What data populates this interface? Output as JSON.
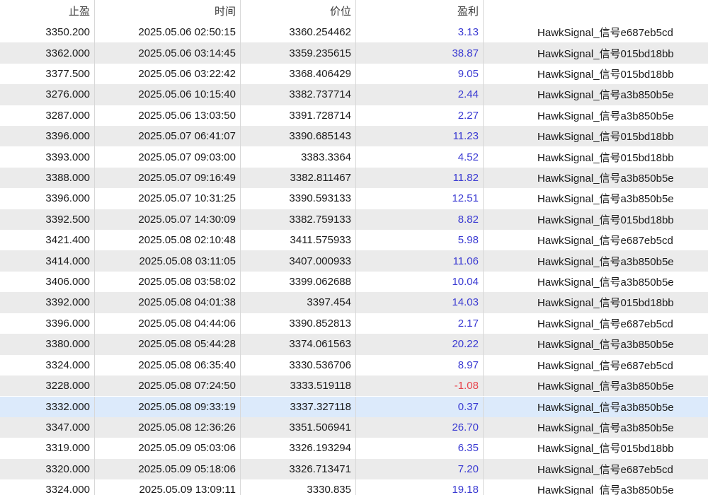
{
  "table": {
    "columns": [
      {
        "key": "tp",
        "label": "止盈"
      },
      {
        "key": "time",
        "label": "时间"
      },
      {
        "key": "price",
        "label": "价位"
      },
      {
        "key": "profit",
        "label": "盈利"
      },
      {
        "key": "signal",
        "label": ""
      }
    ],
    "selected_row_index": 18,
    "rows": [
      {
        "tp": "3350.200",
        "time": "2025.05.06 02:50:15",
        "price": "3360.254462",
        "profit": "3.13",
        "signal": "HawkSignal_信号e687eb5cd"
      },
      {
        "tp": "3362.000",
        "time": "2025.05.06 03:14:45",
        "price": "3359.235615",
        "profit": "38.87",
        "signal": "HawkSignal_信号015bd18bb"
      },
      {
        "tp": "3377.500",
        "time": "2025.05.06 03:22:42",
        "price": "3368.406429",
        "profit": "9.05",
        "signal": "HawkSignal_信号015bd18bb"
      },
      {
        "tp": "3276.000",
        "time": "2025.05.06 10:15:40",
        "price": "3382.737714",
        "profit": "2.44",
        "signal": "HawkSignal_信号a3b850b5e"
      },
      {
        "tp": "3287.000",
        "time": "2025.05.06 13:03:50",
        "price": "3391.728714",
        "profit": "2.27",
        "signal": "HawkSignal_信号a3b850b5e"
      },
      {
        "tp": "3396.000",
        "time": "2025.05.07 06:41:07",
        "price": "3390.685143",
        "profit": "11.23",
        "signal": "HawkSignal_信号015bd18bb"
      },
      {
        "tp": "3393.000",
        "time": "2025.05.07 09:03:00",
        "price": "3383.3364",
        "profit": "4.52",
        "signal": "HawkSignal_信号015bd18bb"
      },
      {
        "tp": "3388.000",
        "time": "2025.05.07 09:16:49",
        "price": "3382.811467",
        "profit": "11.82",
        "signal": "HawkSignal_信号a3b850b5e"
      },
      {
        "tp": "3396.000",
        "time": "2025.05.07 10:31:25",
        "price": "3390.593133",
        "profit": "12.51",
        "signal": "HawkSignal_信号a3b850b5e"
      },
      {
        "tp": "3392.500",
        "time": "2025.05.07 14:30:09",
        "price": "3382.759133",
        "profit": "8.82",
        "signal": "HawkSignal_信号015bd18bb"
      },
      {
        "tp": "3421.400",
        "time": "2025.05.08 02:10:48",
        "price": "3411.575933",
        "profit": "5.98",
        "signal": "HawkSignal_信号e687eb5cd"
      },
      {
        "tp": "3414.000",
        "time": "2025.05.08 03:11:05",
        "price": "3407.000933",
        "profit": "11.06",
        "signal": "HawkSignal_信号a3b850b5e"
      },
      {
        "tp": "3406.000",
        "time": "2025.05.08 03:58:02",
        "price": "3399.062688",
        "profit": "10.04",
        "signal": "HawkSignal_信号a3b850b5e"
      },
      {
        "tp": "3392.000",
        "time": "2025.05.08 04:01:38",
        "price": "3397.454",
        "profit": "14.03",
        "signal": "HawkSignal_信号015bd18bb"
      },
      {
        "tp": "3396.000",
        "time": "2025.05.08 04:44:06",
        "price": "3390.852813",
        "profit": "2.17",
        "signal": "HawkSignal_信号e687eb5cd"
      },
      {
        "tp": "3380.000",
        "time": "2025.05.08 05:44:28",
        "price": "3374.061563",
        "profit": "20.22",
        "signal": "HawkSignal_信号a3b850b5e"
      },
      {
        "tp": "3324.000",
        "time": "2025.05.08 06:35:40",
        "price": "3330.536706",
        "profit": "8.97",
        "signal": "HawkSignal_信号e687eb5cd"
      },
      {
        "tp": "3228.000",
        "time": "2025.05.08 07:24:50",
        "price": "3333.519118",
        "profit": "-1.08",
        "signal": "HawkSignal_信号a3b850b5e"
      },
      {
        "tp": "3332.000",
        "time": "2025.05.08 09:33:19",
        "price": "3337.327118",
        "profit": "0.37",
        "signal": "HawkSignal_信号a3b850b5e"
      },
      {
        "tp": "3347.000",
        "time": "2025.05.08 12:36:26",
        "price": "3351.506941",
        "profit": "26.70",
        "signal": "HawkSignal_信号a3b850b5e"
      },
      {
        "tp": "3319.000",
        "time": "2025.05.09 05:03:06",
        "price": "3326.193294",
        "profit": "6.35",
        "signal": "HawkSignal_信号015bd18bb"
      },
      {
        "tp": "3320.000",
        "time": "2025.05.09 05:18:06",
        "price": "3326.713471",
        "profit": "7.20",
        "signal": "HawkSignal_信号e687eb5cd"
      },
      {
        "tp": "3324.000",
        "time": "2025.05.09 13:09:11",
        "price": "3330.835",
        "profit": "19.18",
        "signal": "HawkSignal_信号a3b850b5e"
      }
    ]
  },
  "colors": {
    "profit_positive": "#3a3ad2",
    "profit_negative": "#e8444c",
    "stripe": "#ebebeb",
    "selected_row": "#dceafb",
    "grid_line": "#d8d8d8"
  }
}
